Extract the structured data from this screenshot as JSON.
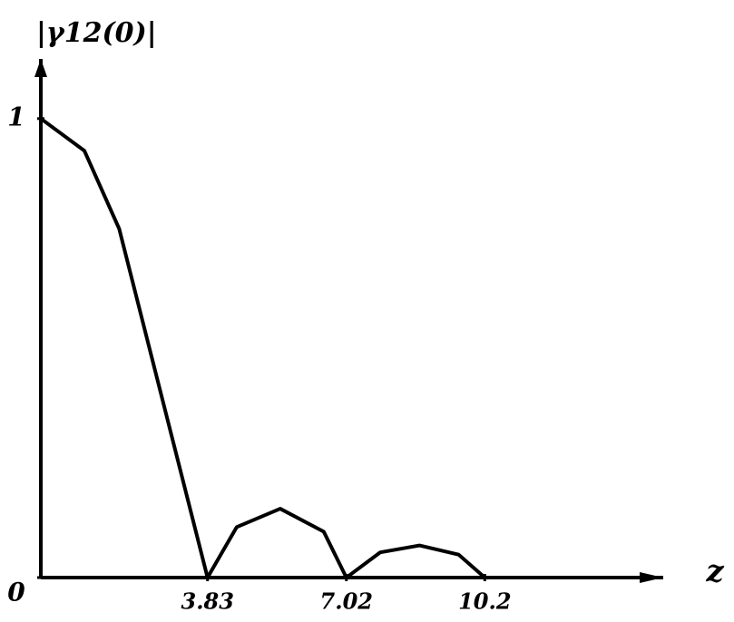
{
  "chart_data": {
    "type": "line",
    "y_label": "|γ12(0)|",
    "x_label": "z",
    "x": [
      0,
      1,
      1.8,
      3.83,
      4.5,
      5.5,
      6.5,
      7.02,
      7.8,
      8.7,
      9.6,
      10.2
    ],
    "series": [
      {
        "color": "#000000",
        "values": [
          1,
          0.93,
          0.76,
          0,
          0.11,
          0.15,
          0.1,
          0,
          0.055,
          0.07,
          0.05,
          0
        ]
      }
    ],
    "xlim": [
      0,
      14.3
    ],
    "ylim": [
      0,
      1.13
    ],
    "xticks": [
      3.83,
      7.02,
      10.2
    ],
    "yticks": [
      0,
      1
    ]
  }
}
